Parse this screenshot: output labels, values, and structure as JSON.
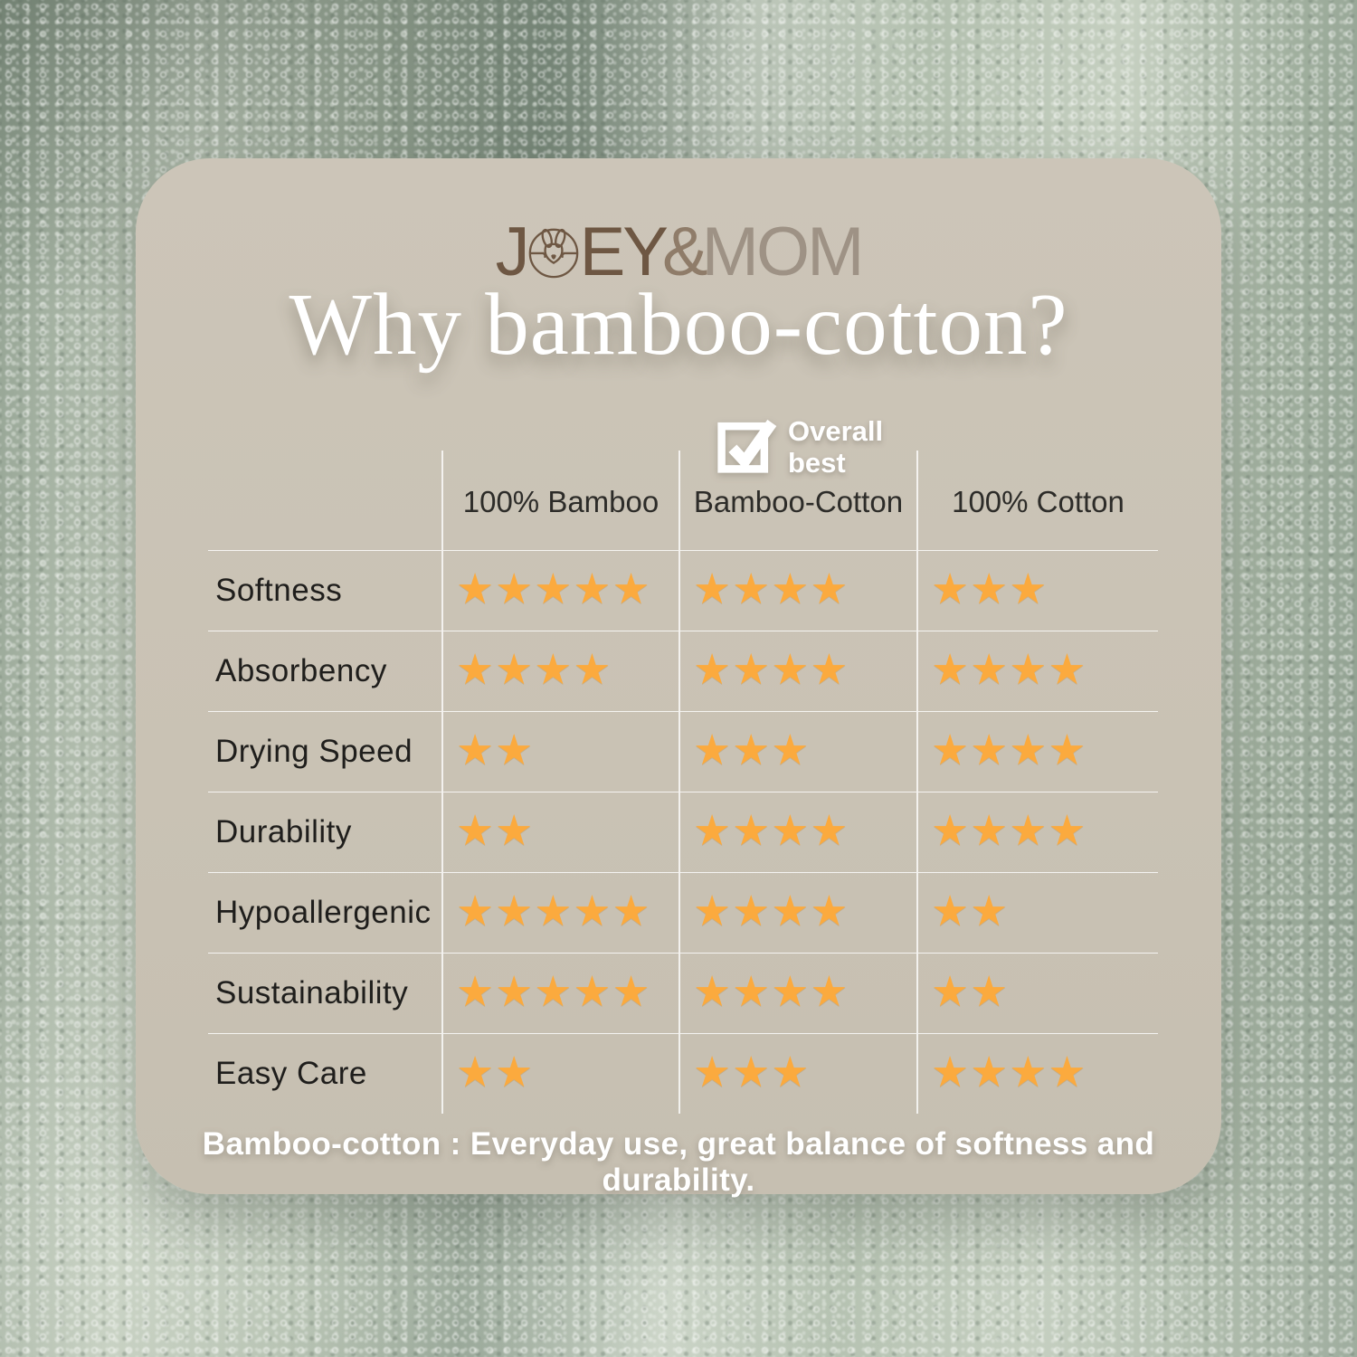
{
  "brand": {
    "joey_j": "J",
    "joey_ey": "EY",
    "amp": "&",
    "mom": "MOM"
  },
  "title": "Why bamboo-cotton?",
  "badge": {
    "text": "Overall\nbest"
  },
  "table": {
    "columns": [
      "100% Bamboo",
      "Bamboo-Cotton",
      "100% Cotton"
    ],
    "rows": [
      {
        "label": "Softness",
        "ratings": [
          5,
          4,
          3
        ]
      },
      {
        "label": "Absorbency",
        "ratings": [
          4,
          4,
          4
        ]
      },
      {
        "label": "Drying Speed",
        "ratings": [
          2,
          3,
          4
        ]
      },
      {
        "label": "Durability",
        "ratings": [
          2,
          4,
          4
        ]
      },
      {
        "label": "Hypoallergenic",
        "ratings": [
          5,
          4,
          2
        ]
      },
      {
        "label": "Sustainability",
        "ratings": [
          5,
          4,
          2
        ]
      },
      {
        "label": "Easy Care",
        "ratings": [
          2,
          3,
          4
        ]
      }
    ],
    "max_rating": 5,
    "star_glyph": "★"
  },
  "footer": "Bamboo-cotton : Everyday use, great balance of softness and durability.",
  "colors": {
    "star": "#FBAA3E",
    "card": "#CBC4B7",
    "logo_dark": "#6E5743",
    "logo_mid": "#8F7C69",
    "logo_light": "#9E9285",
    "towel_base": "#A9B6A5"
  },
  "chart_data": {
    "type": "table",
    "title": "Why bamboo-cotton?",
    "categories": [
      "Softness",
      "Absorbency",
      "Drying Speed",
      "Durability",
      "Hypoallergenic",
      "Sustainability",
      "Easy Care"
    ],
    "series": [
      {
        "name": "100% Bamboo",
        "values": [
          5,
          4,
          2,
          2,
          5,
          5,
          2
        ]
      },
      {
        "name": "Bamboo-Cotton",
        "values": [
          4,
          4,
          3,
          4,
          4,
          4,
          3
        ]
      },
      {
        "name": "100% Cotton",
        "values": [
          3,
          4,
          4,
          4,
          2,
          2,
          4
        ]
      }
    ],
    "value_scale": "stars out of 5",
    "highlight": {
      "series": "Bamboo-Cotton",
      "badge": "Overall best"
    },
    "caption": "Bamboo-cotton : Everyday use, great balance of softness and durability."
  }
}
